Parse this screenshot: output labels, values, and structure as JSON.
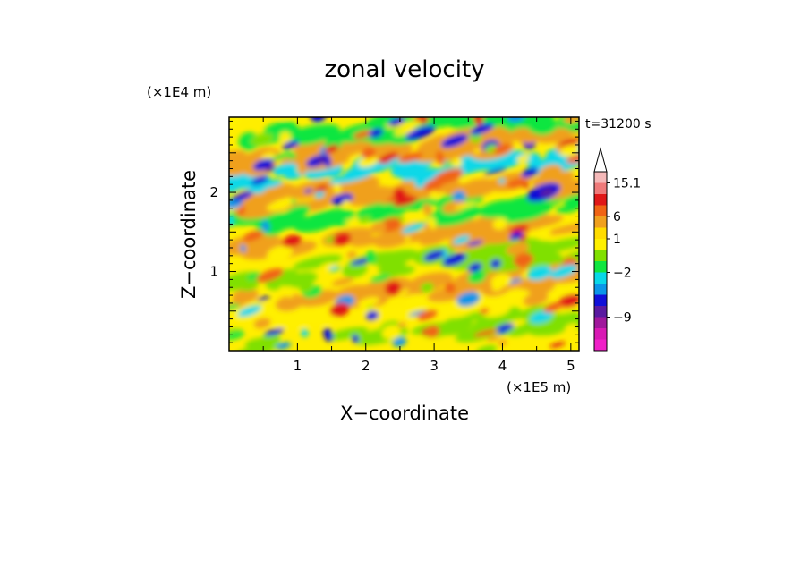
{
  "chart_data": {
    "type": "heatmap",
    "title": "zonal velocity",
    "xlabel": "X−coordinate",
    "ylabel": "Z−coordinate",
    "x_unit": "(×1E5 m)",
    "y_unit": "(×1E4 m)",
    "time_label": "t=31200 s",
    "x_ticks": [
      "1",
      "2",
      "3",
      "4",
      "5"
    ],
    "y_ticks": [
      "1",
      "2"
    ],
    "xlim": [
      0,
      5.12
    ],
    "ylim": [
      0,
      2.95
    ],
    "colorbar": {
      "labels": [
        "15.1",
        "6",
        "1",
        "−2",
        "−9"
      ],
      "levels_shown": [
        15.1,
        6,
        1,
        -2,
        -9
      ],
      "colors": [
        "#ffffff",
        "#f4b8b8",
        "#ef7a7a",
        "#e01818",
        "#f06414",
        "#f0a01e",
        "#ffdc00",
        "#fff000",
        "#80e000",
        "#10e640",
        "#08d8e8",
        "#0a96e8",
        "#1010d8",
        "#5a1aa0",
        "#a0189c",
        "#d81ab4",
        "#f020c8"
      ]
    },
    "colors": {
      "frame": "#000000",
      "background": "#ffffff",
      "field_base": "#ffee00"
    }
  }
}
